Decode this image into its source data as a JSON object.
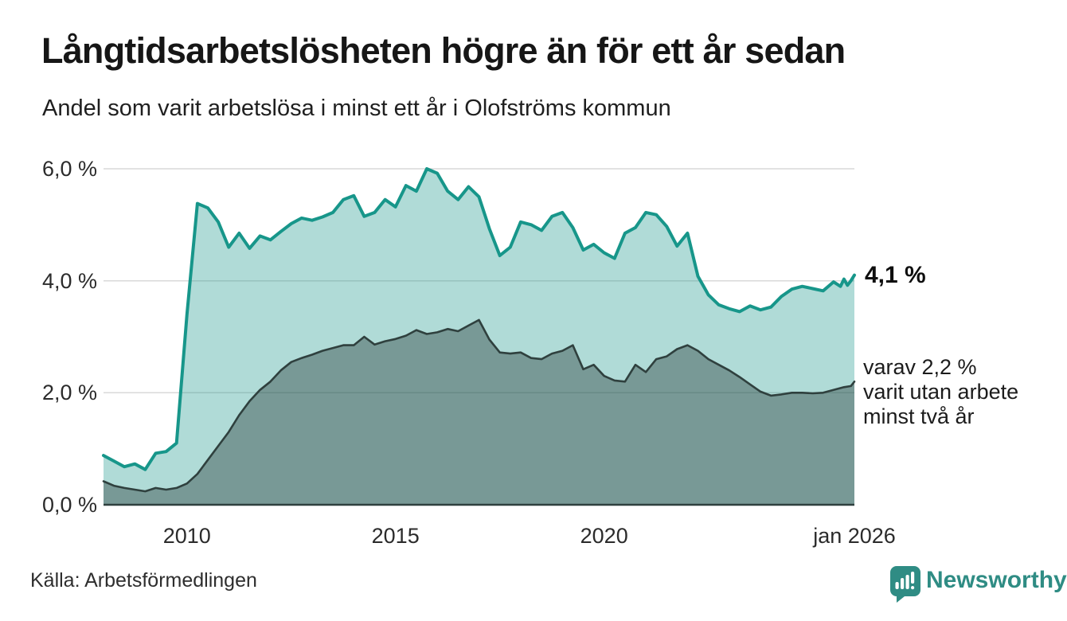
{
  "header": {
    "title": "Långtidsarbetslösheten högre än för ett år sedan",
    "subtitle": "Andel som varit arbetslösa i minst ett år i Olofströms kommun"
  },
  "footer": {
    "source": "Källa: Arbetsförmedlingen",
    "brand": "Newsworthy"
  },
  "chart_data": {
    "type": "area",
    "title": "Långtidsarbetslösheten högre än för ett år sedan",
    "subtitle": "Andel som varit arbetslösa i minst ett år i Olofströms kommun",
    "unit": "%",
    "grid": "horizontal",
    "legend": "none",
    "x_range": [
      "2008-01",
      "2026-01"
    ],
    "ylim": [
      0,
      6.3
    ],
    "style": {
      "line_color_total": "#17968a",
      "fill_color_total": "rgba(23,150,138,0.34)",
      "line_color_twoyears": "#2f403e",
      "fill_color_twoyears": "rgba(42,61,59,0.42)",
      "grid_color": "#d9d9d9",
      "baseline_color": "#2f403e",
      "brand_color": "#2f8c84"
    },
    "y_axis": {
      "ticks": [
        {
          "v": 0,
          "label": "0,0 %"
        },
        {
          "v": 2,
          "label": "2,0 %"
        },
        {
          "v": 4,
          "label": "4,0 %"
        },
        {
          "v": 6,
          "label": "6,0 %"
        }
      ]
    },
    "x_axis": {
      "ticks": [
        {
          "t": 2010.0,
          "label": "2010"
        },
        {
          "t": 2015.0,
          "label": "2015"
        },
        {
          "t": 2020.0,
          "label": "2020"
        },
        {
          "t": 2026.0,
          "label": "jan 2026"
        }
      ]
    },
    "annotations": {
      "last_value_main": "4,1 %",
      "secondary_lines": [
        "varav 2,2 %",
        "varit utan arbete",
        "minst två år"
      ]
    },
    "series": [
      {
        "name": "Andel arbetslösa minst ett år",
        "last_value": 4.1,
        "points": [
          [
            "2008-01",
            0.88
          ],
          [
            "2008-04",
            0.78
          ],
          [
            "2008-07",
            0.68
          ],
          [
            "2008-10",
            0.73
          ],
          [
            "2009-01",
            0.63
          ],
          [
            "2009-04",
            0.92
          ],
          [
            "2009-07",
            0.95
          ],
          [
            "2009-10",
            1.1
          ],
          [
            "2010-01",
            3.4
          ],
          [
            "2010-04",
            5.38
          ],
          [
            "2010-07",
            5.3
          ],
          [
            "2010-10",
            5.05
          ],
          [
            "2011-01",
            4.6
          ],
          [
            "2011-04",
            4.85
          ],
          [
            "2011-07",
            4.58
          ],
          [
            "2011-10",
            4.8
          ],
          [
            "2012-01",
            4.73
          ],
          [
            "2012-04",
            4.88
          ],
          [
            "2012-07",
            5.02
          ],
          [
            "2012-10",
            5.12
          ],
          [
            "2013-01",
            5.08
          ],
          [
            "2013-04",
            5.14
          ],
          [
            "2013-07",
            5.22
          ],
          [
            "2013-10",
            5.45
          ],
          [
            "2014-01",
            5.52
          ],
          [
            "2014-04",
            5.15
          ],
          [
            "2014-07",
            5.22
          ],
          [
            "2014-10",
            5.45
          ],
          [
            "2015-01",
            5.32
          ],
          [
            "2015-04",
            5.7
          ],
          [
            "2015-07",
            5.6
          ],
          [
            "2015-10",
            6.0
          ],
          [
            "2016-01",
            5.92
          ],
          [
            "2016-04",
            5.6
          ],
          [
            "2016-07",
            5.45
          ],
          [
            "2016-10",
            5.68
          ],
          [
            "2017-01",
            5.5
          ],
          [
            "2017-04",
            4.93
          ],
          [
            "2017-07",
            4.45
          ],
          [
            "2017-10",
            4.6
          ],
          [
            "2018-01",
            5.05
          ],
          [
            "2018-04",
            5.0
          ],
          [
            "2018-07",
            4.9
          ],
          [
            "2018-10",
            5.15
          ],
          [
            "2019-01",
            5.22
          ],
          [
            "2019-04",
            4.95
          ],
          [
            "2019-07",
            4.55
          ],
          [
            "2019-10",
            4.65
          ],
          [
            "2020-01",
            4.5
          ],
          [
            "2020-04",
            4.4
          ],
          [
            "2020-07",
            4.85
          ],
          [
            "2020-10",
            4.95
          ],
          [
            "2021-01",
            5.22
          ],
          [
            "2021-04",
            5.18
          ],
          [
            "2021-07",
            4.97
          ],
          [
            "2021-10",
            4.62
          ],
          [
            "2022-01",
            4.85
          ],
          [
            "2022-04",
            4.08
          ],
          [
            "2022-07",
            3.75
          ],
          [
            "2022-10",
            3.57
          ],
          [
            "2023-01",
            3.5
          ],
          [
            "2023-04",
            3.45
          ],
          [
            "2023-07",
            3.55
          ],
          [
            "2023-10",
            3.48
          ],
          [
            "2024-01",
            3.53
          ],
          [
            "2024-04",
            3.72
          ],
          [
            "2024-07",
            3.85
          ],
          [
            "2024-10",
            3.9
          ],
          [
            "2025-01",
            3.86
          ],
          [
            "2025-04",
            3.82
          ],
          [
            "2025-07",
            3.98
          ],
          [
            "2025-09",
            3.9
          ],
          [
            "2025-10",
            4.03
          ],
          [
            "2025-11",
            3.92
          ],
          [
            "2025-12",
            4.0
          ],
          [
            "2026-01",
            4.1
          ]
        ]
      },
      {
        "name": "varav utan arbete minst två år",
        "last_value": 2.2,
        "points": [
          [
            "2008-01",
            0.42
          ],
          [
            "2008-04",
            0.34
          ],
          [
            "2008-07",
            0.3
          ],
          [
            "2008-10",
            0.27
          ],
          [
            "2009-01",
            0.24
          ],
          [
            "2009-04",
            0.3
          ],
          [
            "2009-07",
            0.27
          ],
          [
            "2009-10",
            0.3
          ],
          [
            "2010-01",
            0.38
          ],
          [
            "2010-04",
            0.55
          ],
          [
            "2010-07",
            0.8
          ],
          [
            "2010-10",
            1.05
          ],
          [
            "2011-01",
            1.3
          ],
          [
            "2011-04",
            1.6
          ],
          [
            "2011-07",
            1.85
          ],
          [
            "2011-10",
            2.05
          ],
          [
            "2012-01",
            2.2
          ],
          [
            "2012-04",
            2.4
          ],
          [
            "2012-07",
            2.55
          ],
          [
            "2012-10",
            2.62
          ],
          [
            "2013-01",
            2.68
          ],
          [
            "2013-04",
            2.75
          ],
          [
            "2013-07",
            2.8
          ],
          [
            "2013-10",
            2.85
          ],
          [
            "2014-01",
            2.85
          ],
          [
            "2014-04",
            3.0
          ],
          [
            "2014-07",
            2.86
          ],
          [
            "2014-10",
            2.92
          ],
          [
            "2015-01",
            2.96
          ],
          [
            "2015-04",
            3.02
          ],
          [
            "2015-07",
            3.12
          ],
          [
            "2015-10",
            3.05
          ],
          [
            "2016-01",
            3.08
          ],
          [
            "2016-04",
            3.14
          ],
          [
            "2016-07",
            3.1
          ],
          [
            "2016-10",
            3.2
          ],
          [
            "2017-01",
            3.3
          ],
          [
            "2017-04",
            2.95
          ],
          [
            "2017-07",
            2.72
          ],
          [
            "2017-10",
            2.7
          ],
          [
            "2018-01",
            2.72
          ],
          [
            "2018-04",
            2.62
          ],
          [
            "2018-07",
            2.6
          ],
          [
            "2018-10",
            2.7
          ],
          [
            "2019-01",
            2.75
          ],
          [
            "2019-04",
            2.85
          ],
          [
            "2019-07",
            2.42
          ],
          [
            "2019-10",
            2.5
          ],
          [
            "2020-01",
            2.3
          ],
          [
            "2020-04",
            2.22
          ],
          [
            "2020-07",
            2.2
          ],
          [
            "2020-10",
            2.5
          ],
          [
            "2021-01",
            2.37
          ],
          [
            "2021-04",
            2.6
          ],
          [
            "2021-07",
            2.65
          ],
          [
            "2021-10",
            2.78
          ],
          [
            "2022-01",
            2.85
          ],
          [
            "2022-04",
            2.75
          ],
          [
            "2022-07",
            2.6
          ],
          [
            "2022-10",
            2.5
          ],
          [
            "2023-01",
            2.4
          ],
          [
            "2023-04",
            2.28
          ],
          [
            "2023-07",
            2.15
          ],
          [
            "2023-10",
            2.02
          ],
          [
            "2024-01",
            1.95
          ],
          [
            "2024-04",
            1.97
          ],
          [
            "2024-07",
            2.0
          ],
          [
            "2024-10",
            2.0
          ],
          [
            "2025-01",
            1.99
          ],
          [
            "2025-04",
            2.0
          ],
          [
            "2025-07",
            2.05
          ],
          [
            "2025-10",
            2.1
          ],
          [
            "2025-12",
            2.12
          ],
          [
            "2026-01",
            2.2
          ]
        ]
      }
    ]
  }
}
